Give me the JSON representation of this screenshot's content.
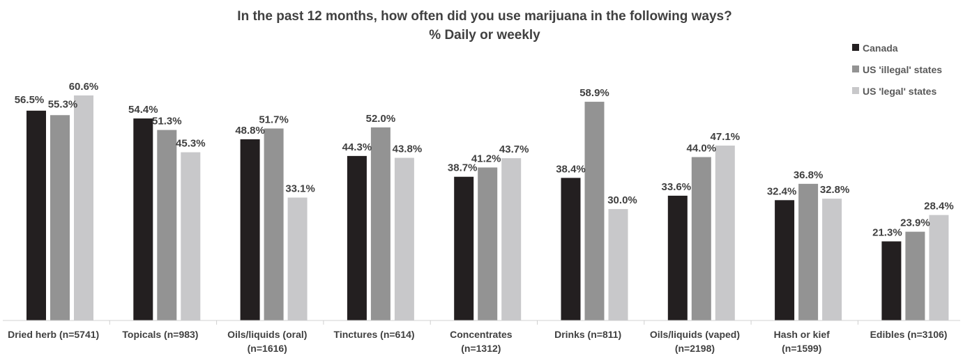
{
  "chart_data": {
    "type": "bar",
    "title": "In the past 12 months, how often did you use marijuana in the following ways?",
    "subtitle": "% Daily or weekly",
    "xlabel": "",
    "ylabel": "",
    "ylim": [
      0,
      70
    ],
    "grid": false,
    "legend_position": "top-right",
    "categories": [
      [
        "Dried herb (n=5741)"
      ],
      [
        "Topicals (n=983)"
      ],
      [
        "Oils/liquids (oral)",
        "(n=1616)"
      ],
      [
        "Tinctures (n=614)"
      ],
      [
        "Concentrates",
        "(n=1312)"
      ],
      [
        "Drinks (n=811)"
      ],
      [
        "Oils/liquids (vaped)",
        "(n=2198)"
      ],
      [
        "Hash or kief",
        "(n=1599)"
      ],
      [
        "Edibles (n=3106)"
      ]
    ],
    "series": [
      {
        "name": "Canada",
        "color": "#231f20",
        "values": [
          56.5,
          54.4,
          48.8,
          44.3,
          38.7,
          38.4,
          33.6,
          32.4,
          21.3
        ],
        "labels": [
          "56.5%",
          "54.4%",
          "48.8%",
          "44.3%",
          "38.7%",
          "38.4%",
          "33.6%",
          "32.4%",
          "21.3%"
        ]
      },
      {
        "name": "US 'illegal' states",
        "color": "#939393",
        "values": [
          55.3,
          51.3,
          51.7,
          52.0,
          41.2,
          58.9,
          44.0,
          36.8,
          23.9
        ],
        "labels": [
          "55.3%",
          "51.3%",
          "51.7%",
          "52.0%",
          "41.2%",
          "58.9%",
          "44.0%",
          "36.8%",
          "23.9%"
        ]
      },
      {
        "name": "US 'legal' states",
        "color": "#c8c8ca",
        "values": [
          60.6,
          45.3,
          33.1,
          43.8,
          43.7,
          30.0,
          47.1,
          32.8,
          28.4
        ],
        "labels": [
          "60.6%",
          "45.3%",
          "33.1%",
          "43.8%",
          "43.7%",
          "30.0%",
          "47.1%",
          "32.8%",
          "28.4%"
        ]
      }
    ]
  }
}
